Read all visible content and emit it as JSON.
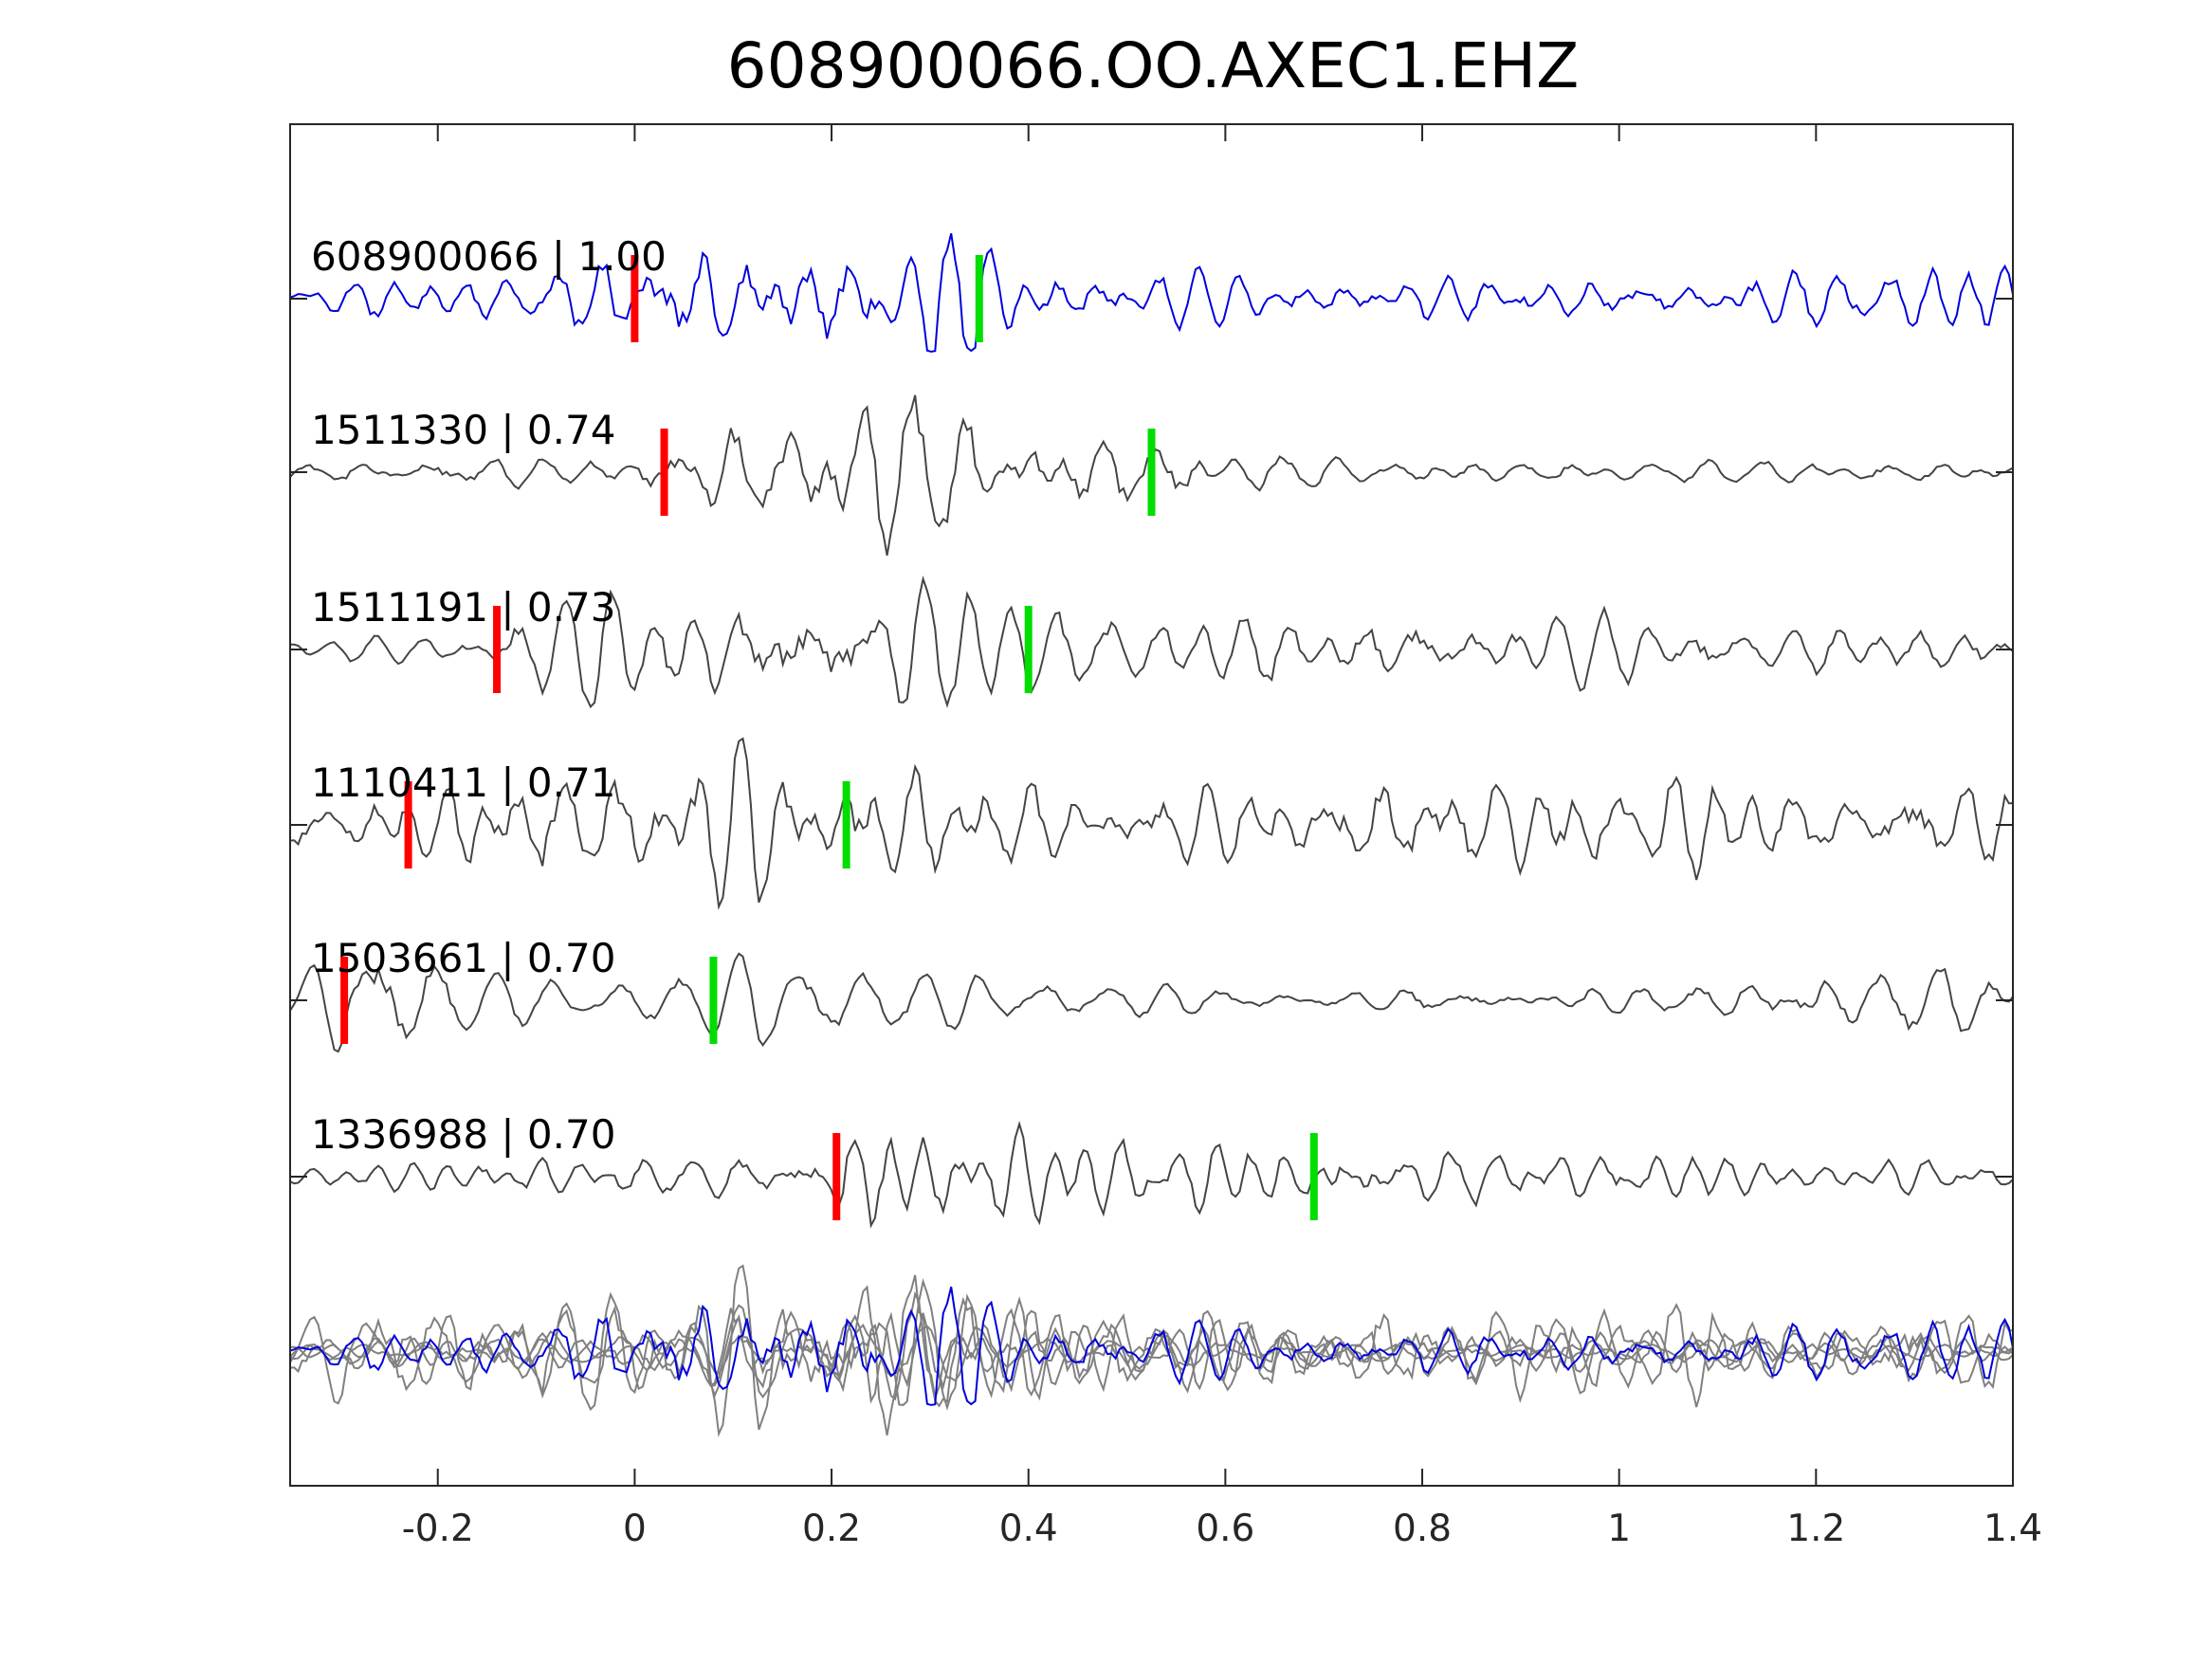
{
  "chart_data": {
    "type": "line",
    "title": "608900066.OO.AXEC1.EHZ",
    "xlabel": "",
    "ylabel": "",
    "xlim": [
      -0.35,
      1.4
    ],
    "xticks": [
      -0.2,
      0,
      0.2,
      0.4,
      0.6,
      0.8,
      1,
      1.2,
      1.4
    ],
    "xtick_labels": [
      "-0.2",
      "0",
      "0.2",
      "0.4",
      "0.6",
      "0.8",
      "1",
      "1.2",
      "1.4"
    ],
    "grid": false,
    "colors": {
      "template": "#0000dd",
      "match": "#444444",
      "overlay": "#808080",
      "p_pick": "#ff0000",
      "s_pick": "#00dd00",
      "axis": "#262626"
    },
    "series": [
      {
        "name": "608900066 | 1.00",
        "event_id": "608900066",
        "cc": 1.0,
        "p_pick": 0.0,
        "s_pick": 0.35,
        "color": "template",
        "envelope": [
          [
            -0.35,
            0.25
          ],
          [
            -0.1,
            0.45
          ],
          [
            -0.05,
            0.85
          ],
          [
            0.05,
            1.0
          ],
          [
            0.25,
            1.0
          ],
          [
            0.35,
            0.8
          ],
          [
            0.45,
            0.4
          ],
          [
            0.7,
            0.3
          ],
          [
            1.0,
            0.4
          ],
          [
            1.4,
            0.55
          ]
        ],
        "freq": 24
      },
      {
        "name": "1511330 | 0.74",
        "event_id": "1511330",
        "cc": 0.74,
        "p_pick": 0.03,
        "s_pick": 0.525,
        "color": "match",
        "envelope": [
          [
            -0.35,
            0.15
          ],
          [
            0.0,
            0.2
          ],
          [
            0.05,
            0.5
          ],
          [
            0.15,
            0.95
          ],
          [
            0.25,
            1.0
          ],
          [
            0.4,
            0.75
          ],
          [
            0.52,
            0.55
          ],
          [
            0.6,
            0.25
          ],
          [
            0.8,
            0.15
          ],
          [
            1.4,
            0.15
          ]
        ],
        "freq": 21
      },
      {
        "name": "1511191 | 0.73",
        "event_id": "1511191",
        "cc": 0.73,
        "p_pick": -0.14,
        "s_pick": 0.4,
        "color": "match",
        "envelope": [
          [
            -0.35,
            0.15
          ],
          [
            -0.16,
            0.2
          ],
          [
            -0.12,
            0.75
          ],
          [
            0.0,
            0.8
          ],
          [
            0.27,
            1.0
          ],
          [
            0.45,
            0.55
          ],
          [
            0.7,
            0.5
          ],
          [
            0.9,
            0.5
          ],
          [
            1.1,
            0.4
          ],
          [
            1.4,
            0.3
          ]
        ],
        "freq": 20
      },
      {
        "name": "1110411 | 0.71",
        "event_id": "1110411",
        "cc": 0.71,
        "p_pick": -0.23,
        "s_pick": 0.215,
        "color": "match",
        "envelope": [
          [
            -0.35,
            0.3
          ],
          [
            -0.25,
            0.5
          ],
          [
            -0.1,
            0.75
          ],
          [
            0.0,
            1.0
          ],
          [
            0.2,
            0.95
          ],
          [
            0.3,
            0.75
          ],
          [
            0.6,
            0.45
          ],
          [
            0.8,
            0.75
          ],
          [
            1.1,
            0.6
          ],
          [
            1.4,
            0.6
          ]
        ],
        "freq": 22
      },
      {
        "name": "1503661 | 0.70",
        "event_id": "1503661",
        "cc": 0.7,
        "p_pick": -0.295,
        "s_pick": 0.08,
        "color": "match",
        "envelope": [
          [
            -0.35,
            0.2
          ],
          [
            -0.3,
            0.8
          ],
          [
            -0.26,
            1.0
          ],
          [
            -0.2,
            0.5
          ],
          [
            -0.1,
            0.25
          ],
          [
            0.05,
            0.3
          ],
          [
            0.12,
            0.6
          ],
          [
            0.3,
            0.35
          ],
          [
            0.7,
            0.15
          ],
          [
            1.05,
            0.3
          ],
          [
            1.2,
            0.45
          ],
          [
            1.35,
            0.65
          ],
          [
            1.4,
            0.3
          ]
        ],
        "freq": 21
      },
      {
        "name": "1336988 | 0.70",
        "event_id": "1336988",
        "cc": 0.7,
        "p_pick": 0.205,
        "s_pick": 0.69,
        "color": "match",
        "envelope": [
          [
            -0.35,
            0.15
          ],
          [
            0.0,
            0.3
          ],
          [
            0.18,
            0.45
          ],
          [
            0.21,
            1.0
          ],
          [
            0.3,
            0.7
          ],
          [
            0.5,
            0.45
          ],
          [
            0.7,
            0.55
          ],
          [
            1.0,
            0.35
          ],
          [
            1.2,
            0.2
          ],
          [
            1.4,
            0.2
          ]
        ],
        "freq": 22
      }
    ],
    "overlay": {
      "description_shown": "all traces stacked at bottom",
      "template_series": "608900066 | 1.00",
      "match_series": [
        "1511330 | 0.74",
        "1511191 | 0.73",
        "1110411 | 0.71",
        "1503661 | 0.70",
        "1336988 | 0.70"
      ]
    }
  }
}
